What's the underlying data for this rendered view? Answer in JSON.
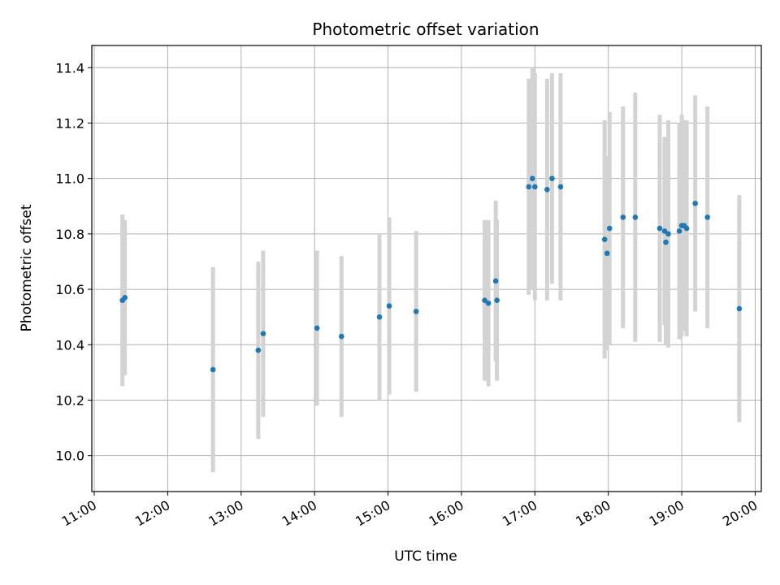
{
  "chart_data": {
    "type": "scatter",
    "title": "Photometric offset variation",
    "xlabel": "UTC time",
    "ylabel": "Photometric offset",
    "xlim": [
      "10:58",
      "20:05"
    ],
    "ylim": [
      9.87,
      11.48
    ],
    "xticks": [
      "11:00",
      "12:00",
      "13:00",
      "14:00",
      "15:00",
      "16:00",
      "17:00",
      "18:00",
      "19:00",
      "20:00"
    ],
    "yticks": [
      10.0,
      10.2,
      10.4,
      10.6,
      10.8,
      11.0,
      11.2,
      11.4
    ],
    "grid": true,
    "colors": {
      "point": "#1f77b4",
      "errorbar": "#d3d3d3",
      "grid": "#b0b0b0"
    },
    "points": [
      {
        "x": "11:23",
        "y": 10.56,
        "err": 0.31
      },
      {
        "x": "11:25",
        "y": 10.57,
        "err": 0.28
      },
      {
        "x": "12:37",
        "y": 10.31,
        "err": 0.37
      },
      {
        "x": "13:14",
        "y": 10.38,
        "err": 0.32
      },
      {
        "x": "13:18",
        "y": 10.44,
        "err": 0.3
      },
      {
        "x": "14:02",
        "y": 10.46,
        "err": 0.28
      },
      {
        "x": "14:22",
        "y": 10.43,
        "err": 0.29
      },
      {
        "x": "14:53",
        "y": 10.5,
        "err": 0.3
      },
      {
        "x": "15:01",
        "y": 10.54,
        "err": 0.32
      },
      {
        "x": "15:23",
        "y": 10.52,
        "err": 0.29
      },
      {
        "x": "16:19",
        "y": 10.56,
        "err": 0.29
      },
      {
        "x": "16:22",
        "y": 10.55,
        "err": 0.3
      },
      {
        "x": "16:28",
        "y": 10.63,
        "err": 0.29
      },
      {
        "x": "16:29",
        "y": 10.56,
        "err": 0.29
      },
      {
        "x": "16:55",
        "y": 10.97,
        "err": 0.39
      },
      {
        "x": "16:58",
        "y": 11.0,
        "err": 0.4
      },
      {
        "x": "17:00",
        "y": 10.97,
        "err": 0.41
      },
      {
        "x": "17:10",
        "y": 10.96,
        "err": 0.4
      },
      {
        "x": "17:14",
        "y": 11.0,
        "err": 0.38
      },
      {
        "x": "17:21",
        "y": 10.97,
        "err": 0.41
      },
      {
        "x": "17:57",
        "y": 10.78,
        "err": 0.43
      },
      {
        "x": "17:59",
        "y": 10.73,
        "err": 0.35
      },
      {
        "x": "18:01",
        "y": 10.82,
        "err": 0.42
      },
      {
        "x": "18:12",
        "y": 10.86,
        "err": 0.4
      },
      {
        "x": "18:22",
        "y": 10.86,
        "err": 0.45
      },
      {
        "x": "18:42",
        "y": 10.82,
        "err": 0.41
      },
      {
        "x": "18:46",
        "y": 10.81,
        "err": 0.34
      },
      {
        "x": "18:47",
        "y": 10.77,
        "err": 0.37
      },
      {
        "x": "18:49",
        "y": 10.8,
        "err": 0.41
      },
      {
        "x": "18:58",
        "y": 10.81,
        "err": 0.39
      },
      {
        "x": "19:00",
        "y": 10.83,
        "err": 0.4
      },
      {
        "x": "19:02",
        "y": 10.83,
        "err": 0.38
      },
      {
        "x": "19:04",
        "y": 10.82,
        "err": 0.39
      },
      {
        "x": "19:11",
        "y": 10.91,
        "err": 0.39
      },
      {
        "x": "19:21",
        "y": 10.86,
        "err": 0.4
      },
      {
        "x": "19:47",
        "y": 10.53,
        "err": 0.41
      }
    ]
  }
}
